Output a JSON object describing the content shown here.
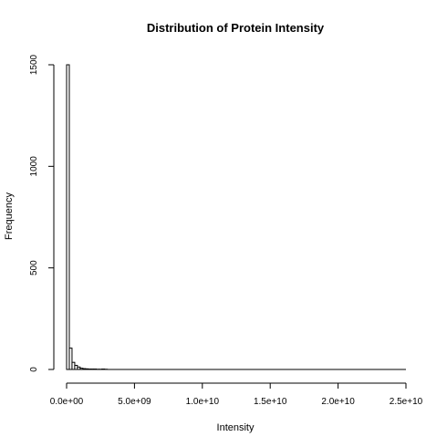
{
  "chart_data": {
    "type": "bar",
    "title": "Distribution of Protein Intensity",
    "xlabel": "Intensity",
    "ylabel": "Frequency",
    "bin_width": 200000000,
    "x_start": 0,
    "bins": [
      {
        "x0": 0,
        "x1": 200000000,
        "count": 1500
      },
      {
        "x0": 200000000,
        "x1": 400000000,
        "count": 105
      },
      {
        "x0": 400000000,
        "x1": 600000000,
        "count": 35
      },
      {
        "x0": 600000000,
        "x1": 800000000,
        "count": 20
      },
      {
        "x0": 800000000,
        "x1": 1000000000,
        "count": 12
      },
      {
        "x0": 1000000000,
        "x1": 1200000000,
        "count": 6
      },
      {
        "x0": 1200000000,
        "x1": 1400000000,
        "count": 4
      },
      {
        "x0": 1400000000,
        "x1": 1600000000,
        "count": 3
      },
      {
        "x0": 1600000000,
        "x1": 1800000000,
        "count": 2
      },
      {
        "x0": 1800000000,
        "x1": 2000000000,
        "count": 2
      },
      {
        "x0": 2000000000,
        "x1": 2200000000,
        "count": 2
      },
      {
        "x0": 2200000000,
        "x1": 2400000000,
        "count": 1
      },
      {
        "x0": 2400000000,
        "x1": 2600000000,
        "count": 1
      },
      {
        "x0": 2600000000,
        "x1": 2800000000,
        "count": 2
      },
      {
        "x0": 2800000000,
        "x1": 3000000000,
        "count": 1
      }
    ],
    "xlim": [
      0,
      25000000000
    ],
    "ylim": [
      0,
      1500
    ],
    "x_ticks": [
      0,
      5000000000,
      10000000000,
      15000000000,
      20000000000,
      25000000000
    ],
    "x_tick_labels": [
      "0.0e+00",
      "5.0e+09",
      "1.0e+10",
      "1.5e+10",
      "2.0e+10",
      "2.5e+10"
    ],
    "y_ticks": [
      0,
      500,
      1000,
      1500
    ],
    "y_tick_labels": [
      "0",
      "500",
      "1000",
      "1500"
    ],
    "grid": false
  }
}
